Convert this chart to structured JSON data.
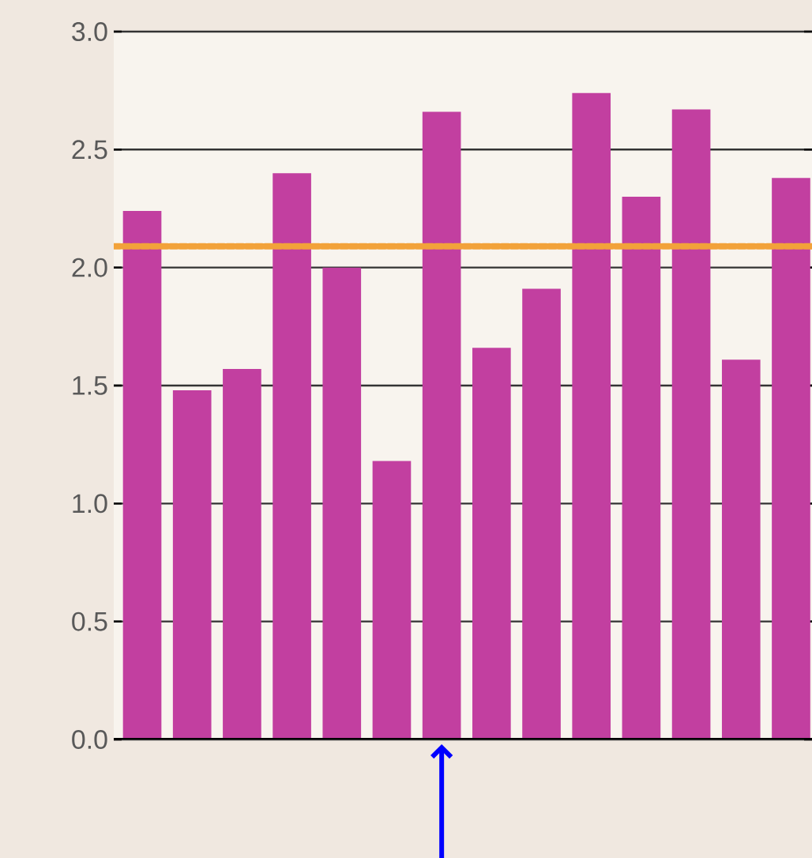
{
  "chart_data": {
    "type": "bar",
    "categories": [
      null,
      null,
      null,
      null,
      null,
      null,
      null,
      null,
      null,
      null,
      null,
      null,
      null,
      null
    ],
    "values": [
      2.24,
      1.48,
      1.57,
      2.4,
      2.0,
      1.18,
      2.66,
      1.66,
      1.91,
      2.74,
      2.3,
      2.67,
      1.61,
      2.38
    ],
    "color": "#c23fa0",
    "ylim": [
      0,
      3
    ],
    "yticks": [
      {
        "value": 0,
        "label": "0.0"
      },
      {
        "value": 0.5,
        "label": "0.5"
      },
      {
        "value": 1,
        "label": "1.0"
      },
      {
        "value": 1.5,
        "label": "1.5"
      },
      {
        "value": 2,
        "label": "2.0"
      },
      {
        "value": 2.5,
        "label": "2.5"
      },
      {
        "value": 3,
        "label": "3.0"
      }
    ],
    "grid": "y",
    "tick_labels": "y",
    "ref_lines": [
      {
        "axis": "y",
        "value": 2.09,
        "color": "#f2a23a",
        "line_style": "dotted"
      }
    ]
  }
}
